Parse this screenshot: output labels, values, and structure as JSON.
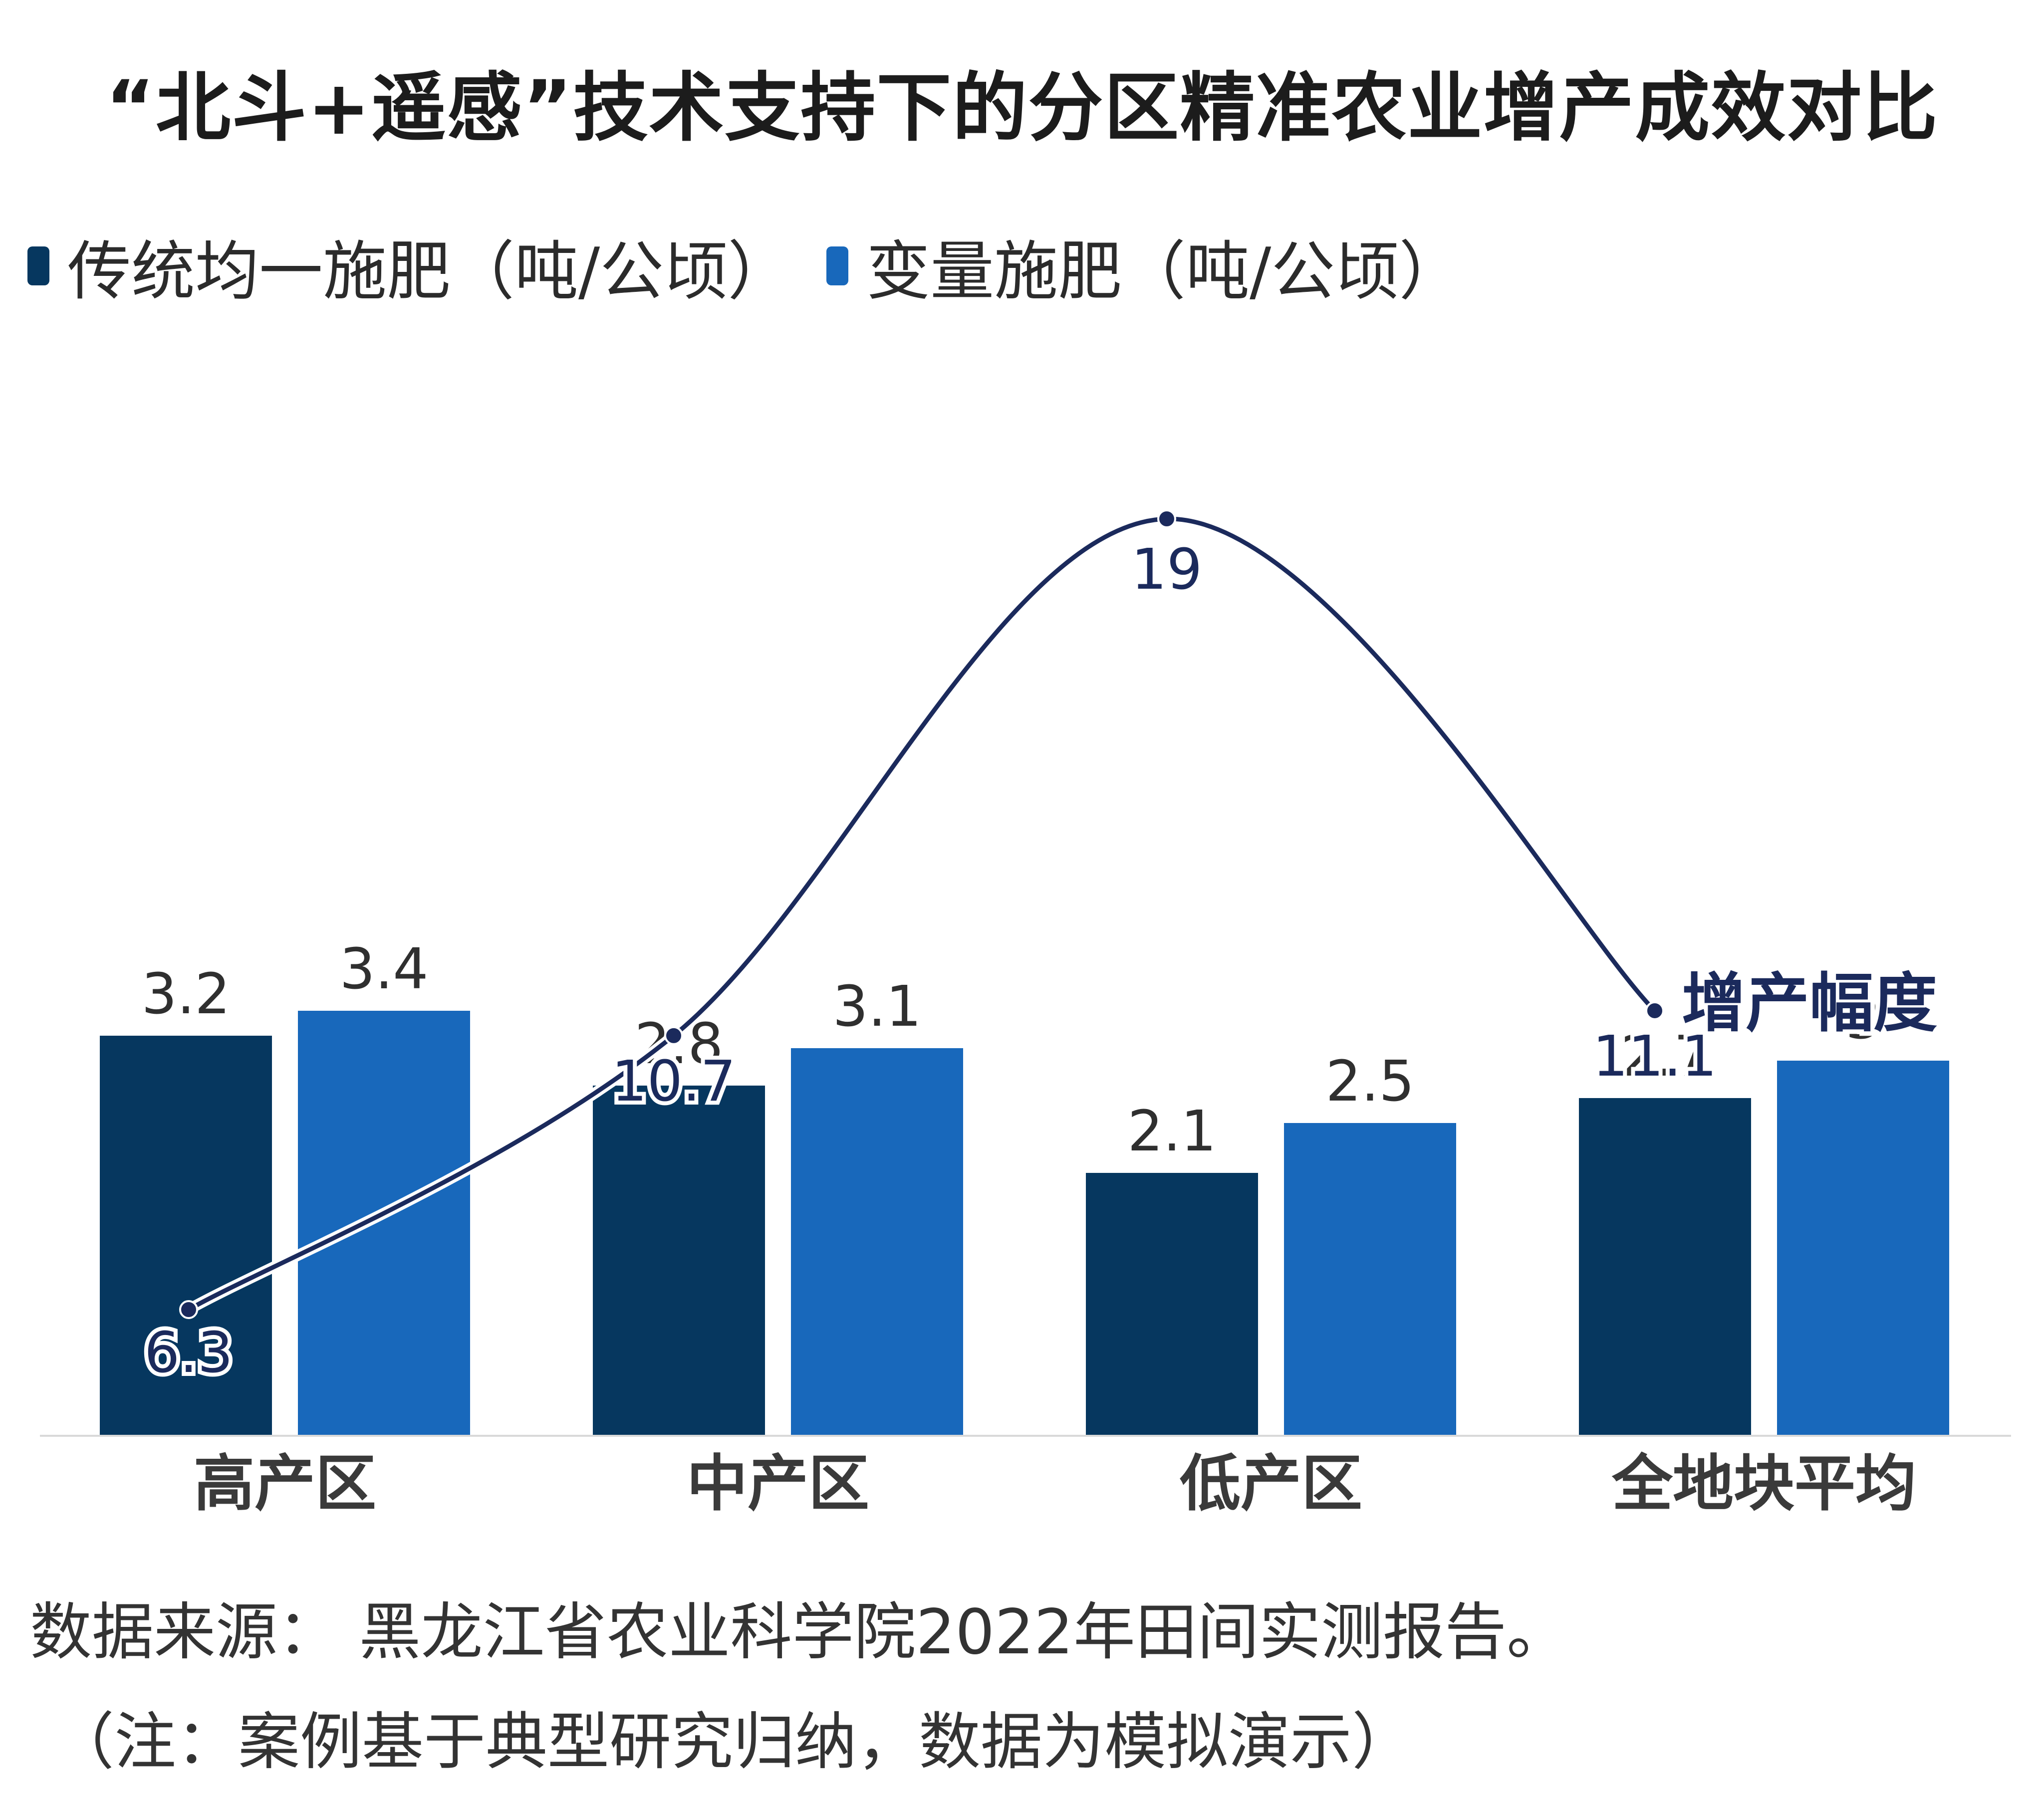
{
  "chart_data": {
    "type": "bar",
    "title": "“北斗+遥感”技术支持下的分区精准农业增产成效对比",
    "categories": [
      "高产区",
      "中产区",
      "低产区",
      "全地块平均"
    ],
    "series": [
      {
        "name": "传统均一施肥（吨/公顷）",
        "values": [
          3.2,
          2.8,
          2.1,
          2.7
        ],
        "color": "#06375f"
      },
      {
        "name": "变量施肥（吨/公顷）",
        "values": [
          3.4,
          3.1,
          2.5,
          3
        ],
        "color": "#1868bb"
      }
    ],
    "line": {
      "name": "增产幅度",
      "values": [
        6.3,
        10.7,
        19,
        11.1
      ],
      "color": "#1b2a5c"
    },
    "ylim": [
      0,
      4
    ]
  },
  "footer": {
    "source": "数据来源： 黑龙江省农业科学院2022年田间实测报告。",
    "note": "（注：案例基于典型研究归纳，数据为模拟演示）"
  }
}
